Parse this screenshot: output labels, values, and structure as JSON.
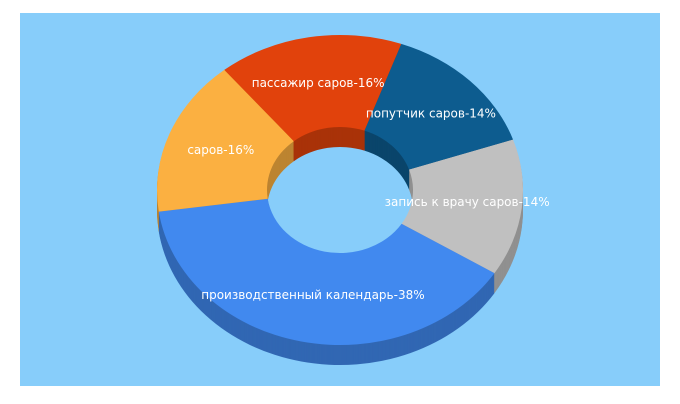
{
  "chart_data": {
    "type": "donut3d",
    "values": [
      38,
      14,
      14,
      16,
      16
    ],
    "value_labels": [
      "производственный календарь-38%",
      "запись к врачу саров-14%",
      "попутчик саров-14%",
      "пассажир саров-16%",
      "саров-16%"
    ],
    "colors": [
      "#4189ef",
      "#c0c0c0",
      "#0d5c8f",
      "#e1420c",
      "#fbb041"
    ]
  }
}
